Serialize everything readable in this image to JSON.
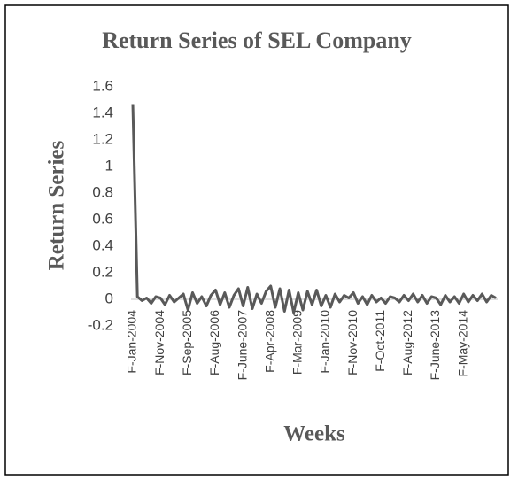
{
  "chart_data": {
    "type": "line",
    "title": "Return Series of SEL Company",
    "x_label": "Weeks",
    "y_label": "Return Series",
    "categories": [
      "F-Jan-2004",
      null,
      null,
      null,
      null,
      null,
      "F-Nov-2004",
      null,
      null,
      null,
      null,
      null,
      "F-Sep-2005",
      null,
      null,
      null,
      null,
      null,
      "F-Aug-2006",
      null,
      null,
      null,
      null,
      null,
      "F-June-2007",
      null,
      null,
      null,
      null,
      null,
      "F-Apr-2008",
      null,
      null,
      null,
      null,
      null,
      "F-Mar-2009",
      null,
      null,
      null,
      null,
      null,
      "F-Jan-2010",
      null,
      null,
      null,
      null,
      null,
      "F-Nov-2010",
      null,
      null,
      null,
      null,
      null,
      "F-Oct-2011",
      null,
      null,
      null,
      null,
      null,
      "F-Aug-2012",
      null,
      null,
      null,
      null,
      null,
      "F-June-2013",
      null,
      null,
      null,
      null,
      null,
      "F-May-2014",
      null,
      null,
      null,
      null,
      null,
      null,
      null
    ],
    "series": [
      {
        "name": "Return Series",
        "color": "#595959",
        "values": [
          1.47,
          0.02,
          -0.01,
          0.01,
          -0.03,
          0.02,
          0.01,
          -0.04,
          0.03,
          -0.02,
          0.01,
          0.04,
          -0.08,
          0.05,
          -0.03,
          0.02,
          -0.05,
          0.03,
          0.07,
          -0.04,
          0.05,
          -0.06,
          0.03,
          0.08,
          -0.05,
          0.09,
          -0.07,
          0.04,
          -0.03,
          0.06,
          0.1,
          -0.06,
          0.08,
          -0.09,
          0.07,
          -0.1,
          0.05,
          -0.08,
          0.06,
          -0.04,
          0.07,
          -0.05,
          0.03,
          -0.06,
          0.04,
          -0.02,
          0.03,
          0.01,
          0.05,
          -0.03,
          0.02,
          -0.04,
          0.03,
          -0.02,
          0.01,
          -0.03,
          0.02,
          0.01,
          -0.02,
          0.03,
          -0.01,
          0.04,
          -0.02,
          0.03,
          -0.03,
          0.02,
          0.01,
          -0.04,
          0.03,
          -0.02,
          0.02,
          -0.03,
          0.04,
          -0.02,
          0.03,
          -0.01,
          0.04,
          -0.02,
          0.03,
          0.01
        ]
      }
    ],
    "ylim": [
      -0.2,
      1.6
    ],
    "yticks": [
      -0.2,
      0,
      0.2,
      0.4,
      0.6,
      0.8,
      1,
      1.2,
      1.4,
      1.6
    ],
    "grid": false
  }
}
